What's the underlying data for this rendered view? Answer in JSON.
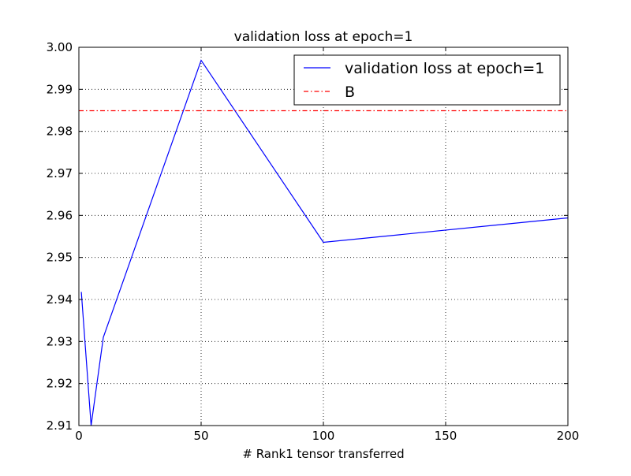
{
  "chart_data": {
    "type": "line",
    "title": "validation loss at epoch=1",
    "xlabel": "# Rank1 tensor transferred",
    "ylabel": "",
    "xlim": [
      0,
      200
    ],
    "ylim": [
      2.91,
      3.0
    ],
    "xticks": [
      0,
      50,
      100,
      150,
      200
    ],
    "xtick_labels": [
      "0",
      "50",
      "100",
      "150",
      "200"
    ],
    "yticks": [
      2.91,
      2.92,
      2.93,
      2.94,
      2.95,
      2.96,
      2.97,
      2.98,
      2.99,
      3.0
    ],
    "ytick_labels": [
      "2.91",
      "2.92",
      "2.93",
      "2.94",
      "2.95",
      "2.96",
      "2.97",
      "2.98",
      "2.99",
      "3.00"
    ],
    "grid": true,
    "legend_position": "top-right",
    "series": [
      {
        "name": "validation loss at epoch=1",
        "style": "solid",
        "color": "#0000ff",
        "x": [
          1,
          5,
          10,
          50,
          100,
          200
        ],
        "y": [
          2.9418,
          2.91,
          2.931,
          2.9969,
          2.9536,
          2.9594
        ]
      },
      {
        "name": "B",
        "style": "dashdot",
        "color": "#ff0000",
        "x": [
          0,
          200
        ],
        "y": [
          2.9849,
          2.9849
        ]
      }
    ]
  }
}
